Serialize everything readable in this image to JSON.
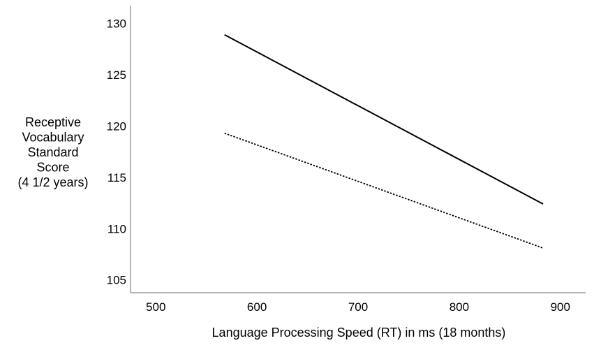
{
  "chart_data": {
    "type": "line",
    "title": "",
    "xlabel": "Language Processing Speed (RT) in ms (18 months)",
    "ylabel_lines": [
      "Receptive",
      "Vocabulary",
      "Standard",
      "Score",
      "(4 1/2 years)"
    ],
    "xlim": [
      475,
      925
    ],
    "ylim": [
      103.75,
      131.75
    ],
    "xticks": [
      500,
      600,
      700,
      800,
      900
    ],
    "yticks": [
      105,
      110,
      115,
      120,
      125,
      130
    ],
    "grid": false,
    "legend": "none",
    "series": [
      {
        "style": "solid",
        "color": "#000000",
        "points": [
          [
            568,
            128.9
          ],
          [
            883,
            112.4
          ]
        ]
      },
      {
        "style": "dotted",
        "color": "#000000",
        "points": [
          [
            568,
            119.3
          ],
          [
            883,
            108.1
          ]
        ]
      }
    ]
  }
}
